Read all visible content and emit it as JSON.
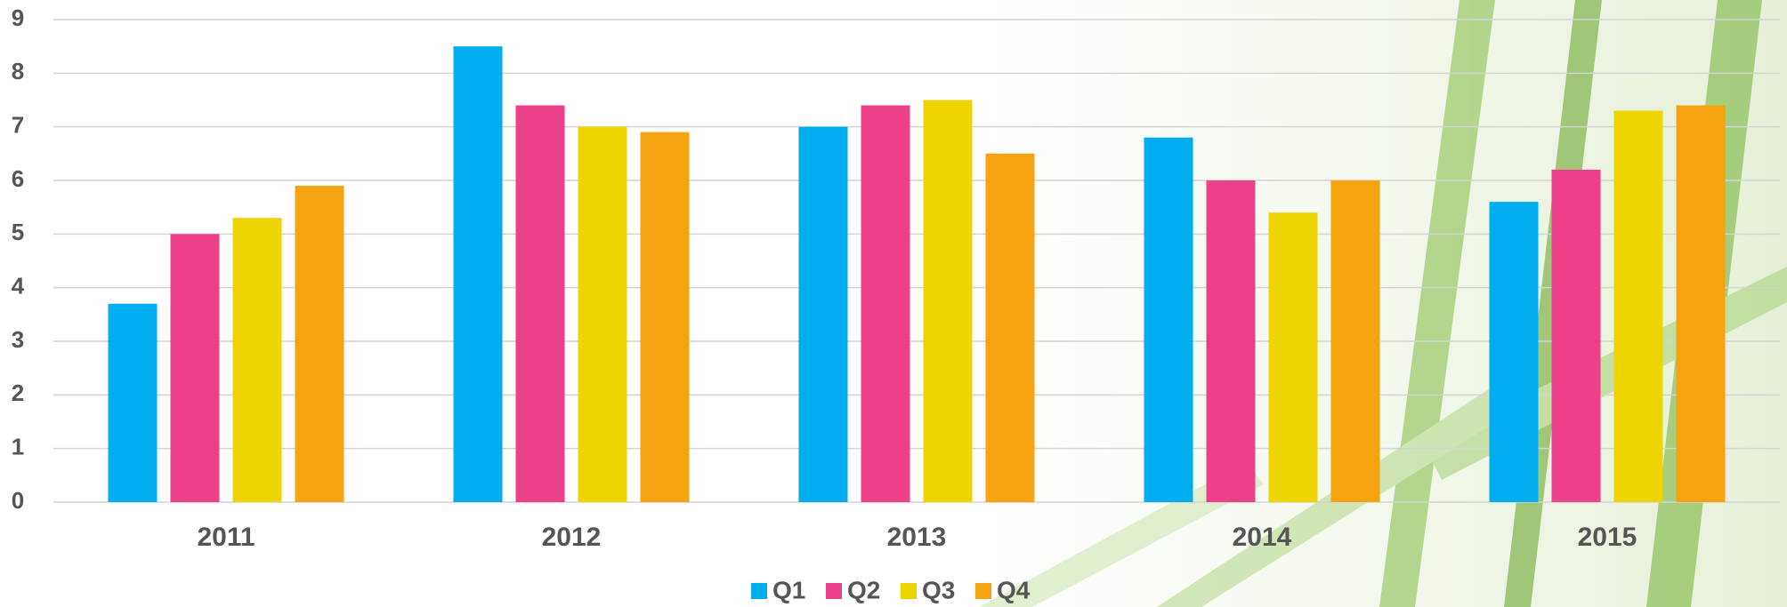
{
  "chart_data": {
    "type": "bar",
    "categories": [
      "2011",
      "2012",
      "2013",
      "2014",
      "2015"
    ],
    "series": [
      {
        "name": "Q1",
        "color": "#00aeef",
        "values": [
          3.7,
          8.5,
          7.0,
          6.8,
          5.6
        ]
      },
      {
        "name": "Q2",
        "color": "#ec4088",
        "values": [
          5.0,
          7.4,
          7.4,
          6.0,
          6.2
        ]
      },
      {
        "name": "Q3",
        "color": "#eed500",
        "values": [
          5.3,
          7.0,
          7.5,
          5.4,
          7.3
        ]
      },
      {
        "name": "Q4",
        "color": "#f5a30f",
        "values": [
          5.9,
          6.9,
          6.5,
          6.0,
          7.4
        ]
      }
    ],
    "ylim": [
      0,
      9
    ],
    "yticks": [
      0,
      1,
      2,
      3,
      4,
      5,
      6,
      7,
      8,
      9
    ],
    "grid": true,
    "legend": "bottom"
  }
}
